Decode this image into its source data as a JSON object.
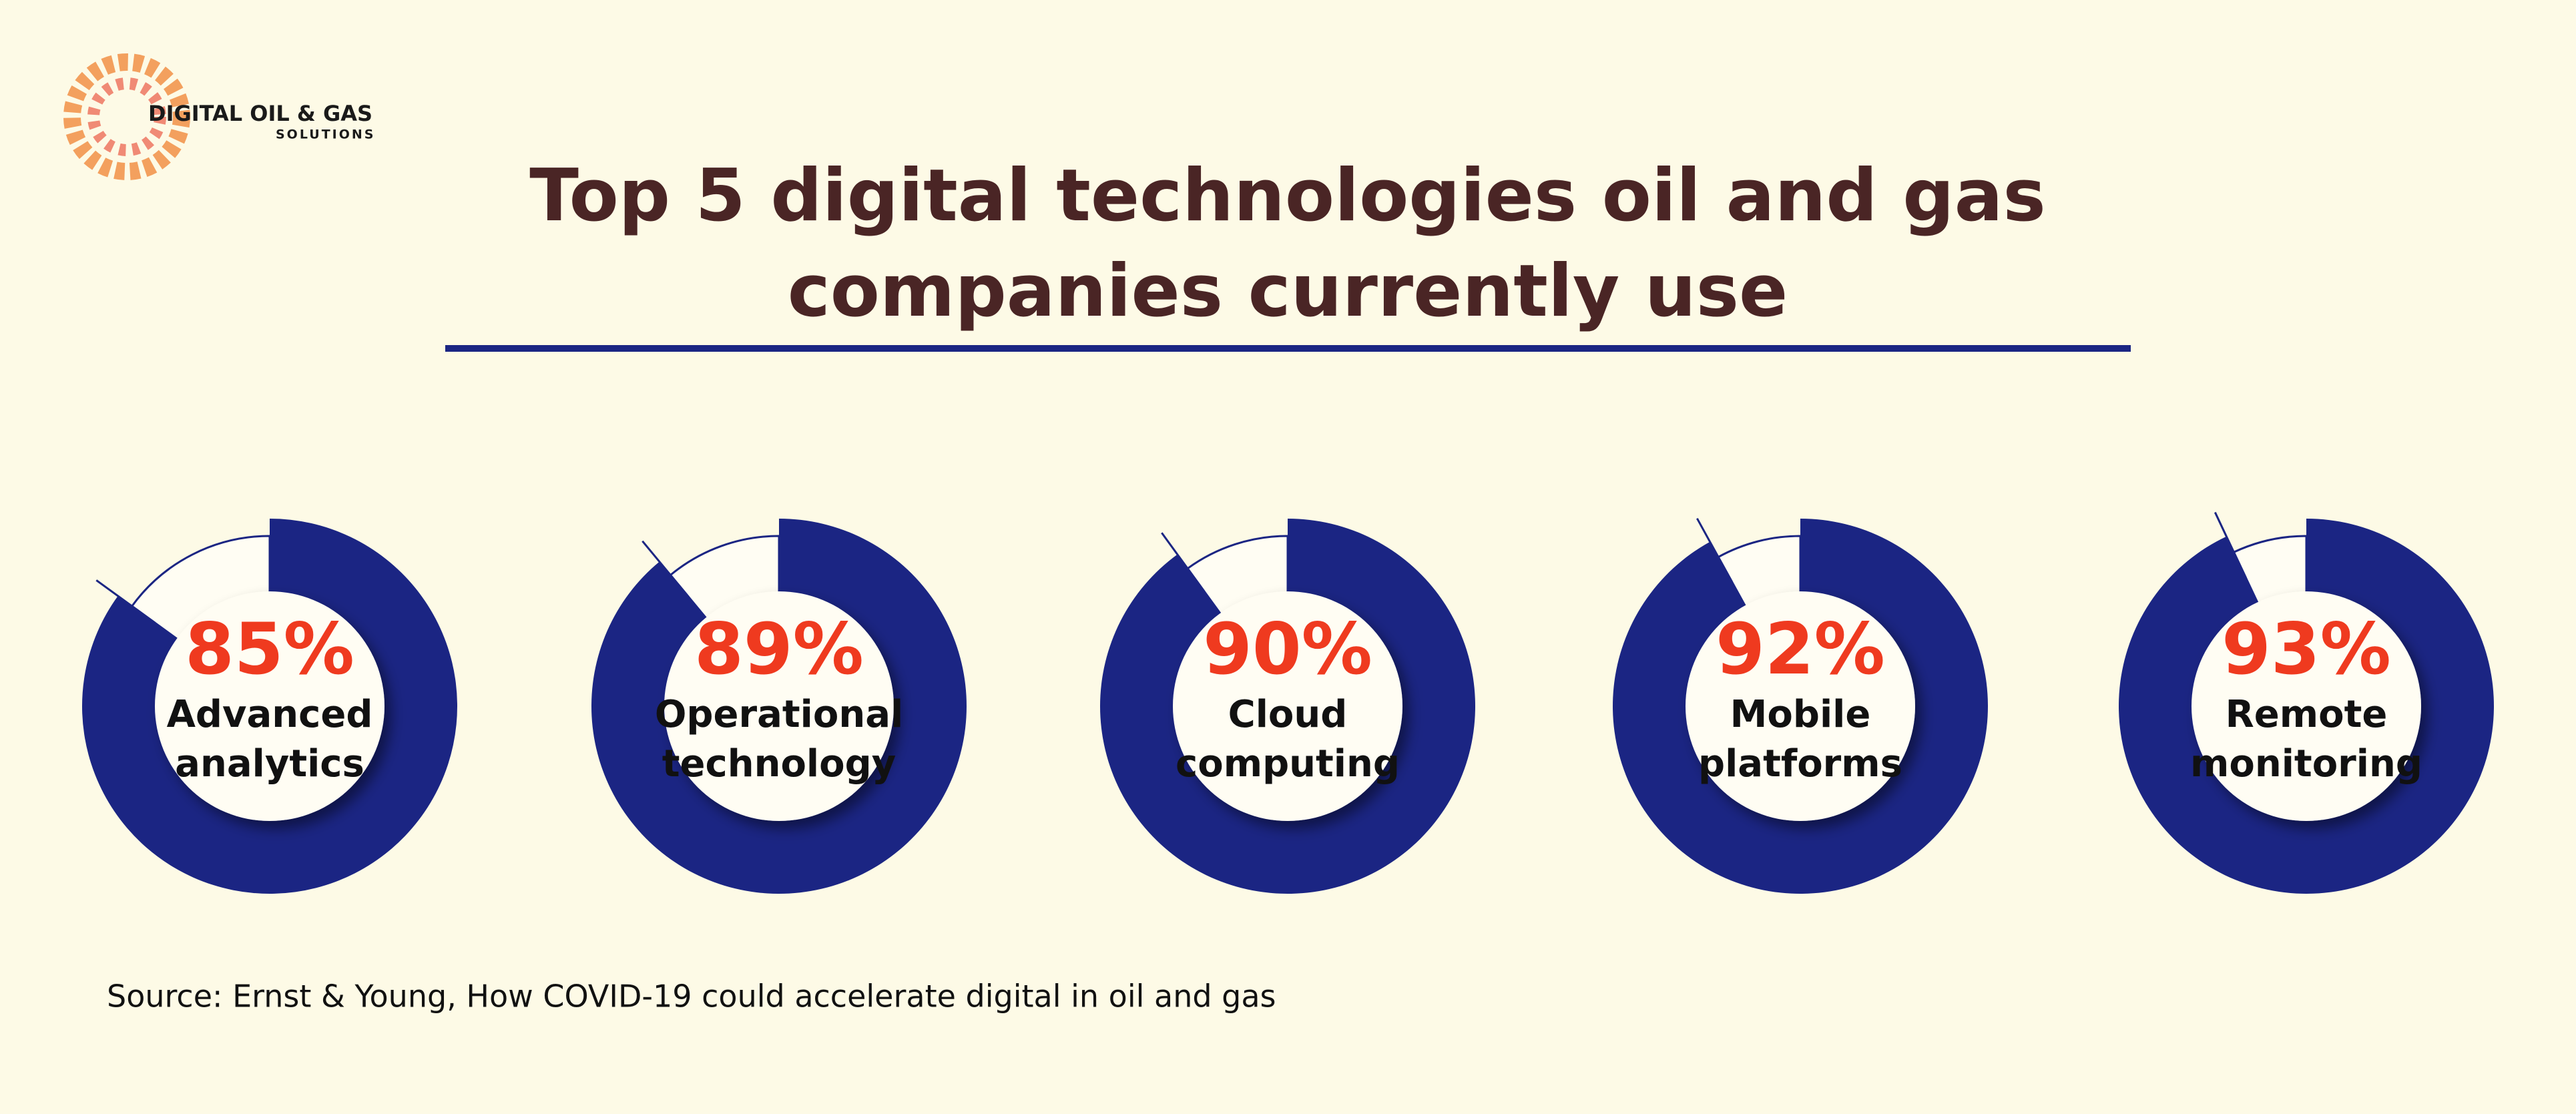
{
  "logo": {
    "name": "DIGITAL OIL & GAS",
    "tagline": "SOLUTIONS"
  },
  "chart_data": {
    "type": "donut",
    "title": [
      "Top 5 digital technologies oil and gas",
      "companies currently use"
    ],
    "categories": [
      [
        "Advanced",
        "analytics"
      ],
      [
        "Operational",
        "technology"
      ],
      [
        "Cloud",
        "computing"
      ],
      [
        "Mobile",
        "platforms"
      ],
      [
        "Remote",
        "monitoring"
      ]
    ],
    "values": [
      85,
      89,
      90,
      92,
      93
    ],
    "value_labels": [
      "85%",
      "89%",
      "90%",
      "92%",
      "93%"
    ],
    "color": "#1b2583",
    "source": "Source: Ernst & Young, How COVID-19 could accelerate digital in oil and gas"
  }
}
